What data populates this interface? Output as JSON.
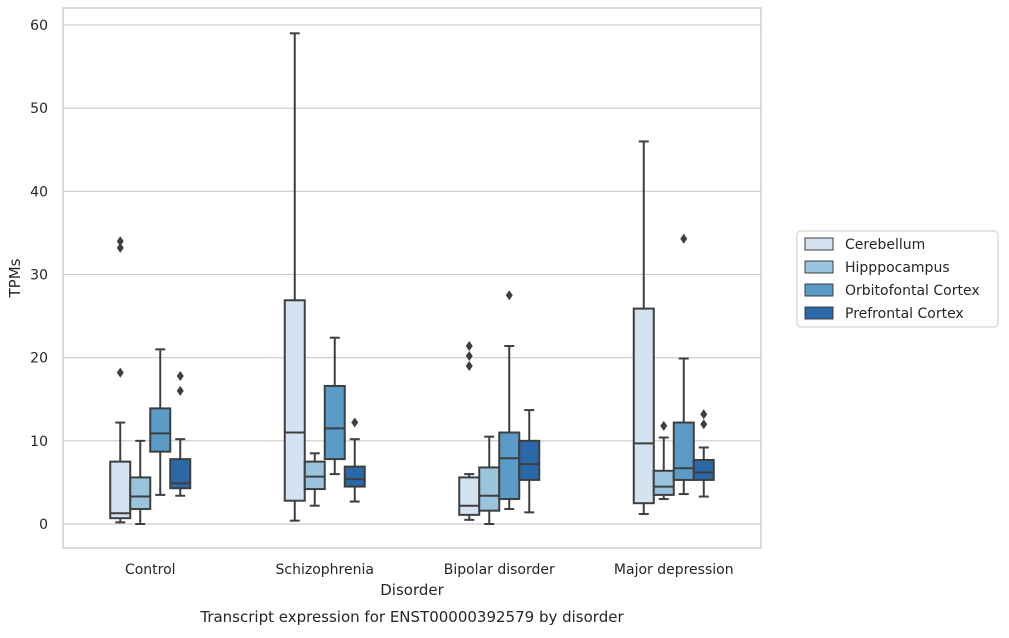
{
  "chart_data": {
    "type": "box",
    "title": "",
    "caption": "Transcript expression for ENST00000392579 by disorder",
    "xlabel": "Disorder",
    "ylabel": "TPMs",
    "ylim": [
      -3,
      62
    ],
    "yticks": [
      0,
      10,
      20,
      30,
      40,
      50,
      60
    ],
    "grid": true,
    "legend_position": "outside-right",
    "categories": [
      "Control",
      "Schizophrenia",
      "Bipolar disorder",
      "Major depression"
    ],
    "series": [
      {
        "name": "Cerebellum",
        "color": "#d4e3f2",
        "boxes": [
          {
            "whislo": 0.2,
            "q1": 0.7,
            "med": 1.3,
            "q3": 7.5,
            "whishi": 12.2,
            "fliers": [
              18.2,
              33.2,
              34.0
            ]
          },
          {
            "whislo": 0.4,
            "q1": 2.8,
            "med": 11.0,
            "q3": 26.9,
            "whishi": 59.0,
            "fliers": []
          },
          {
            "whislo": 0.5,
            "q1": 1.1,
            "med": 2.2,
            "q3": 5.6,
            "whishi": 6.0,
            "fliers": [
              19.0,
              20.2,
              21.4
            ]
          },
          {
            "whislo": 1.2,
            "q1": 2.5,
            "med": 9.7,
            "q3": 25.9,
            "whishi": 46.0,
            "fliers": []
          }
        ]
      },
      {
        "name": "Hipppocampus",
        "color": "#9ac3de",
        "boxes": [
          {
            "whislo": 0.0,
            "q1": 1.8,
            "med": 3.3,
            "q3": 5.6,
            "whishi": 10.0,
            "fliers": []
          },
          {
            "whislo": 2.2,
            "q1": 4.2,
            "med": 5.7,
            "q3": 7.5,
            "whishi": 8.5,
            "fliers": []
          },
          {
            "whislo": 0.0,
            "q1": 1.6,
            "med": 3.4,
            "q3": 6.8,
            "whishi": 10.5,
            "fliers": []
          },
          {
            "whislo": 3.0,
            "q1": 3.5,
            "med": 4.5,
            "q3": 6.4,
            "whishi": 10.4,
            "fliers": [
              11.8
            ]
          }
        ]
      },
      {
        "name": "Orbitofontal Cortex",
        "color": "#5a9bc8",
        "boxes": [
          {
            "whislo": 3.5,
            "q1": 8.7,
            "med": 10.9,
            "q3": 13.9,
            "whishi": 21.0,
            "fliers": []
          },
          {
            "whislo": 6.0,
            "q1": 7.8,
            "med": 11.5,
            "q3": 16.6,
            "whishi": 22.4,
            "fliers": []
          },
          {
            "whislo": 1.8,
            "q1": 3.0,
            "med": 7.9,
            "q3": 11.0,
            "whishi": 21.4,
            "fliers": [
              27.5
            ]
          },
          {
            "whislo": 3.6,
            "q1": 5.3,
            "med": 6.7,
            "q3": 12.2,
            "whishi": 19.9,
            "fliers": [
              34.3
            ]
          }
        ]
      },
      {
        "name": "Prefrontal Cortex",
        "color": "#2a68a8",
        "boxes": [
          {
            "whislo": 3.4,
            "q1": 4.3,
            "med": 4.9,
            "q3": 7.8,
            "whishi": 10.2,
            "fliers": [
              16.0,
              17.8
            ]
          },
          {
            "whislo": 2.7,
            "q1": 4.5,
            "med": 5.4,
            "q3": 6.9,
            "whishi": 10.2,
            "fliers": [
              12.2
            ]
          },
          {
            "whislo": 1.4,
            "q1": 5.3,
            "med": 7.2,
            "q3": 10.0,
            "whishi": 13.7,
            "fliers": []
          },
          {
            "whislo": 3.3,
            "q1": 5.3,
            "med": 6.2,
            "q3": 7.7,
            "whishi": 9.2,
            "fliers": [
              12.0,
              13.2
            ]
          }
        ]
      }
    ]
  }
}
